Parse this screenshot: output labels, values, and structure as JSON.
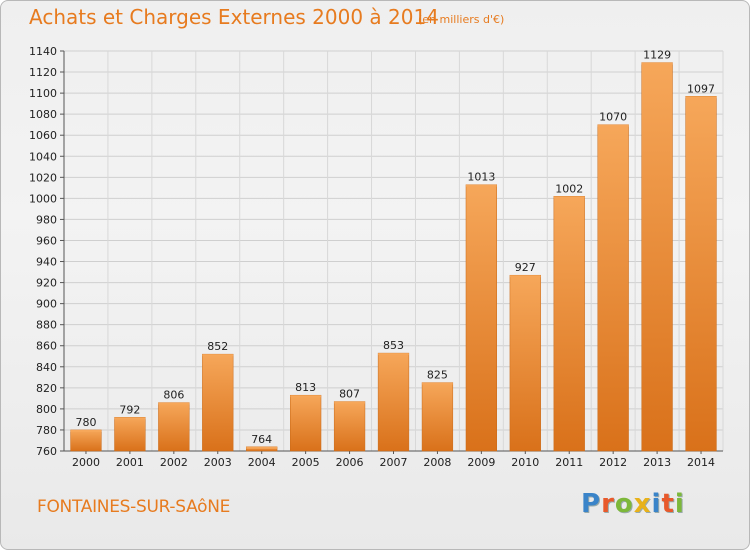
{
  "header": {
    "title": "Achats et Charges Externes 2000 à 2014",
    "subtitle": "(en milliers d'€)"
  },
  "footer": {
    "place": "FONTAINES-SUR-SAôNE",
    "logo_letters": [
      "P",
      "r",
      "o",
      "x",
      "i",
      "t",
      "i"
    ],
    "logo_colors": [
      "#3a84c9",
      "#e8592b",
      "#7db83a",
      "#e8b21b",
      "#3a84c9",
      "#e8592b",
      "#7db83a"
    ]
  },
  "chart_data": {
    "type": "bar",
    "title": "Achats et Charges Externes 2000 à 2014",
    "subtitle": "(en milliers d'€)",
    "categories": [
      "2000",
      "2001",
      "2002",
      "2003",
      "2004",
      "2005",
      "2006",
      "2007",
      "2008",
      "2009",
      "2010",
      "2011",
      "2012",
      "2013",
      "2014"
    ],
    "values": [
      780,
      792,
      806,
      852,
      764,
      813,
      807,
      853,
      825,
      1013,
      927,
      1002,
      1070,
      1129,
      1097
    ],
    "ylim": [
      760,
      1140
    ],
    "yticks": [
      760,
      780,
      800,
      820,
      840,
      860,
      880,
      900,
      920,
      940,
      960,
      980,
      1000,
      1020,
      1040,
      1060,
      1080,
      1100,
      1120,
      1140
    ],
    "grid": true,
    "bar_color": "#f08a2c",
    "bar_color_light": "#f6a75a",
    "bar_color_dark": "#d9711a"
  }
}
